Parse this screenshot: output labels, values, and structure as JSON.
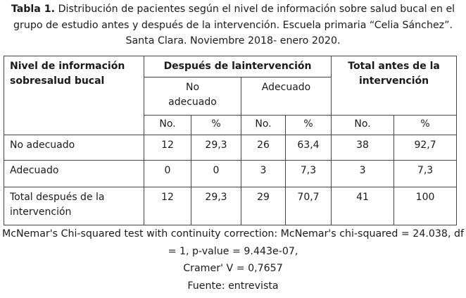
{
  "caption": {
    "label": "Tabla 1.",
    "line1": "Distribución de pacientes según el nivel de información sobre salud bucal en el",
    "line2": "grupo de estudio antes y después de la intervención. Escuela primaria “Celia Sánchez”.",
    "line3": "Santa Clara. Noviembre 2018- enero 2020."
  },
  "table": {
    "header": {
      "row_label_1": "Nivel de información",
      "row_label_2": "sobresalud bucal",
      "after_group": "Después de laintervención",
      "total_before_1": "Total antes de la",
      "total_before_2": "intervención",
      "not_adequate_1": "No",
      "not_adequate_2": "adecuado",
      "adequate": "Adecuado",
      "no": "No.",
      "pct": "%"
    },
    "rows": [
      {
        "label": "No adecuado",
        "values": [
          "12",
          "29,3",
          "26",
          "63,4",
          "38",
          "92,7"
        ]
      },
      {
        "label": "Adecuado",
        "values": [
          "0",
          "0",
          "3",
          "7,3",
          "3",
          "7,3"
        ]
      },
      {
        "label_1": "Total después de la",
        "label_2": "intervención",
        "values": [
          "12",
          "29,3",
          "29",
          "70,7",
          "41",
          "100"
        ]
      }
    ]
  },
  "notes": {
    "line1": "McNemar's Chi-squared test with continuity correction: McNemar's chi-squared = 24.038, df",
    "line2": "= 1, p-value = 9.443e-07,",
    "line3": "Cramer' V = 0,7657",
    "line4": "Fuente: entrevista"
  }
}
